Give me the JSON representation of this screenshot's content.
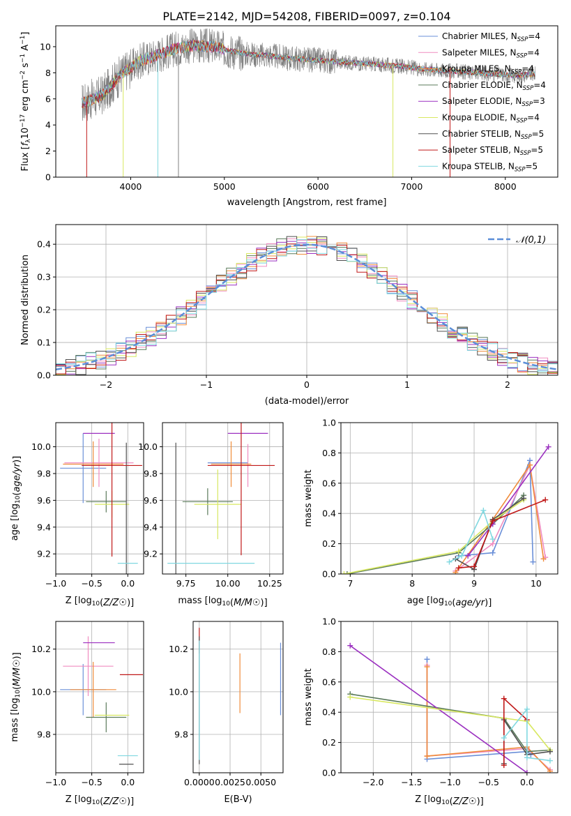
{
  "figure_title": "PLATE=2142, MJD=54208, FIBERID=0097, z=0.104",
  "colors": {
    "Chabrier MILES": "#6a8fd8",
    "Salpeter MILES": "#f08cc0",
    "Kroupa MILES": "#f08c3a",
    "Chabrier ELODIE": "#5a7a5a",
    "Salpeter ELODIE": "#9b30c0",
    "Kroupa ELODIE": "#d8e860",
    "Chabrier STELIB": "#505050",
    "Salpeter STELIB": "#c01818",
    "Kroupa STELIB": "#80d8e0",
    "data": "#808080",
    "gauss": "#5b8ed8"
  },
  "chart_data": [
    {
      "type": "line",
      "title": "PLATE=2142, MJD=54208, FIBERID=0097, z=0.104",
      "xlabel": "wavelength [Angstrom, rest frame]",
      "ylabel": "Flux [f_λ 10^-17 erg cm^-2 s^-1 A^-1]",
      "xlim": [
        3200,
        8560
      ],
      "ylim": [
        0,
        11.6
      ],
      "xticks": [
        4000,
        5000,
        6000,
        7000,
        8000
      ],
      "yticks": [
        0,
        2,
        4,
        6,
        8,
        10
      ],
      "grid": false,
      "legend_position": "top-right",
      "legend": [
        "Chabrier MILES, N_SSP=4",
        "Salpeter MILES, N_SSP=4",
        "Kroupa MILES, N_SSP=4",
        "Chabrier ELODIE, N_SSP=4",
        "Salpeter ELODIE, N_SSP=3",
        "Kroupa ELODIE, N_SSP=4",
        "Chabrier STELIB, N_SSP=5",
        "Salpeter STELIB, N_SSP=5",
        "Kroupa STELIB, N_SSP=5"
      ],
      "model_continuum": {
        "x": [
          3500,
          3700,
          3900,
          4100,
          4300,
          4500,
          4700,
          4900,
          5100,
          5300,
          5500,
          5700,
          5900,
          6100,
          6300,
          6500,
          6700,
          6900,
          7100,
          7300,
          7500,
          7700,
          7900,
          8100,
          8300
        ],
        "y": [
          5.7,
          6.3,
          7.9,
          8.9,
          9.4,
          9.9,
          10.1,
          10.0,
          9.6,
          9.4,
          9.3,
          9.1,
          9.0,
          8.9,
          8.8,
          8.7,
          8.6,
          8.5,
          8.3,
          8.2,
          8.1,
          8.0,
          7.9,
          7.8,
          7.9
        ]
      },
      "spikes": [
        {
          "x": 3530,
          "y0": 0,
          "series": "Salpeter STELIB"
        },
        {
          "x": 3920,
          "y0": 0,
          "series": "Kroupa ELODIE"
        },
        {
          "x": 4290,
          "y0": 0,
          "series": "Kroupa STELIB"
        },
        {
          "x": 4510,
          "y0": 0,
          "series": "data"
        },
        {
          "x": 6800,
          "y0": 0,
          "series": "Kroupa ELODIE"
        },
        {
          "x": 7410,
          "y0": 0,
          "series": "Salpeter STELIB"
        }
      ]
    },
    {
      "type": "histogram",
      "xlabel": "(data-model)/error",
      "ylabel": "Normed distribution",
      "xlim": [
        -2.5,
        2.5
      ],
      "ylim": [
        0,
        0.46
      ],
      "xticks": [
        -2,
        -1,
        0,
        1,
        2
      ],
      "yticks": [
        0.0,
        0.1,
        0.2,
        0.3,
        0.4
      ],
      "grid": true,
      "legend_position": "top-right",
      "legend": [
        "𝒩(0,1)"
      ],
      "bin_width": 0.1,
      "bin_start": -2.5,
      "gaussian": {
        "mu": 0,
        "sigma": 1,
        "style": "dashed"
      }
    },
    {
      "type": "scatter",
      "panel": "age vs Z",
      "xlabel": "Z [log10(Z/Z☉)]",
      "ylabel": "age  [log10(age/yr)]",
      "xlim": [
        -1.0,
        0.22
      ],
      "ylim": [
        9.05,
        10.18
      ],
      "xticks": [
        -1.0,
        -0.5,
        0.0
      ],
      "yticks": [
        9.2,
        9.4,
        9.6,
        9.8,
        10.0
      ],
      "grid": true,
      "errorbars": [
        {
          "series": "Chabrier MILES",
          "x": -0.62,
          "y": 9.84,
          "xerr": 0.32,
          "yerr": 0.26
        },
        {
          "series": "Salpeter MILES",
          "x": -0.4,
          "y": 9.88,
          "xerr": 0.48,
          "yerr": 0.18
        },
        {
          "series": "Kroupa MILES",
          "x": -0.48,
          "y": 9.87,
          "xerr": 0.42,
          "yerr": 0.17
        },
        {
          "series": "Chabrier ELODIE",
          "x": -0.3,
          "y": 9.59,
          "xerr": 0.28,
          "yerr": 0.08
        },
        {
          "series": "Salpeter ELODIE",
          "x": -0.4,
          "y": 10.1,
          "xerr": 0.22,
          "yerr": 0.0
        },
        {
          "series": "Kroupa ELODIE",
          "x": -0.22,
          "y": 9.57,
          "xerr": 0.24,
          "yerr": 0.1
        },
        {
          "series": "Chabrier STELIB",
          "x": -0.02,
          "y": 9.13,
          "xerr": 0.0,
          "yerr": 0.9
        },
        {
          "series": "Salpeter STELIB",
          "x": -0.22,
          "y": 9.86,
          "xerr": 0.42,
          "yerr": 0.68
        },
        {
          "series": "Kroupa STELIB",
          "x": 0.0,
          "y": 9.13,
          "xerr": 0.14,
          "yerr": 0.0
        }
      ]
    },
    {
      "type": "scatter",
      "panel": "age vs mass",
      "xlabel": "mass [log10(M/M☉)]",
      "ylabel": "",
      "xlim": [
        9.61,
        10.33
      ],
      "ylim": [
        9.05,
        10.18
      ],
      "xticks": [
        9.75,
        10.0,
        10.25
      ],
      "yticks": [
        9.2,
        9.4,
        9.6,
        9.8,
        10.0
      ],
      "grid": true,
      "errorbars": [
        {
          "series": "Chabrier MILES",
          "x": 10.0,
          "y": 9.88,
          "xerr": 0.12,
          "yerr": 0.0
        },
        {
          "series": "Salpeter MILES",
          "x": 10.12,
          "y": 9.86,
          "xerr": 0.0,
          "yerr": 0.16
        },
        {
          "series": "Kroupa MILES",
          "x": 10.02,
          "y": 9.87,
          "xerr": 0.12,
          "yerr": 0.17
        },
        {
          "series": "Chabrier ELODIE",
          "x": 9.88,
          "y": 9.59,
          "xerr": 0.15,
          "yerr": 0.1
        },
        {
          "series": "Salpeter ELODIE",
          "x": 10.12,
          "y": 10.1,
          "xerr": 0.12,
          "yerr": 0.0
        },
        {
          "series": "Kroupa ELODIE",
          "x": 9.94,
          "y": 9.57,
          "xerr": 0.14,
          "yerr": 0.26
        },
        {
          "series": "Chabrier STELIB",
          "x": 9.69,
          "y": 9.13,
          "xerr": 0.0,
          "yerr": 0.9
        },
        {
          "series": "Salpeter STELIB",
          "x": 10.08,
          "y": 9.86,
          "xerr": 0.2,
          "yerr": 0.67
        },
        {
          "series": "Kroupa STELIB",
          "x": 9.9,
          "y": 9.13,
          "xerr": 0.26,
          "yerr": 0.0
        }
      ]
    },
    {
      "type": "line",
      "panel": "mass weight vs age",
      "xlabel": "age  [log10(age/yr)]",
      "ylabel": "mass weight",
      "xlim": [
        6.85,
        10.35
      ],
      "ylim": [
        0.0,
        1.0
      ],
      "xticks": [
        7,
        8,
        9,
        10
      ],
      "yticks": [
        0.0,
        0.2,
        0.4,
        0.6,
        0.8,
        1.0
      ],
      "grid": true,
      "series": [
        {
          "name": "Chabrier MILES",
          "points": [
            [
              8.75,
              0.12
            ],
            [
              9.3,
              0.14
            ],
            [
              9.9,
              0.75
            ],
            [
              9.95,
              0.08
            ]
          ]
        },
        {
          "name": "Salpeter MILES",
          "points": [
            [
              8.7,
              0.02
            ],
            [
              9.3,
              0.2
            ],
            [
              9.9,
              0.72
            ],
            [
              10.15,
              0.11
            ]
          ]
        },
        {
          "name": "Kroupa MILES",
          "points": [
            [
              8.7,
              0.01
            ],
            [
              9.3,
              0.36
            ],
            [
              9.9,
              0.72
            ],
            [
              10.12,
              0.1
            ]
          ]
        },
        {
          "name": "Chabrier ELODIE",
          "points": [
            [
              6.95,
              0.0
            ],
            [
              8.75,
              0.14
            ],
            [
              9.3,
              0.33
            ],
            [
              9.8,
              0.52
            ]
          ]
        },
        {
          "name": "Salpeter ELODIE",
          "points": [
            [
              8.9,
              0.12
            ],
            [
              9.3,
              0.33
            ],
            [
              10.2,
              0.84
            ]
          ]
        },
        {
          "name": "Kroupa ELODIE",
          "points": [
            [
              6.9,
              0.0
            ],
            [
              8.75,
              0.15
            ],
            [
              9.3,
              0.35
            ],
            [
              9.8,
              0.49
            ]
          ]
        },
        {
          "name": "Chabrier STELIB",
          "points": [
            [
              8.7,
              0.1
            ],
            [
              9.0,
              0.03
            ],
            [
              9.3,
              0.36
            ],
            [
              9.8,
              0.5
            ]
          ]
        },
        {
          "name": "Salpeter STELIB",
          "points": [
            [
              8.75,
              0.04
            ],
            [
              9.0,
              0.05
            ],
            [
              9.3,
              0.35
            ],
            [
              10.15,
              0.49
            ]
          ]
        },
        {
          "name": "Kroupa STELIB",
          "points": [
            [
              8.6,
              0.08
            ],
            [
              8.8,
              0.12
            ],
            [
              9.15,
              0.42
            ],
            [
              9.3,
              0.23
            ]
          ]
        }
      ]
    },
    {
      "type": "scatter",
      "panel": "mass vs Z",
      "xlabel": "Z [log10(Z/Z☉)]",
      "ylabel": "mass [log10(M/M☉)]",
      "xlim": [
        -1.0,
        0.22
      ],
      "ylim": [
        9.62,
        10.33
      ],
      "xticks": [
        -1.0,
        -0.5,
        0.0
      ],
      "yticks": [
        9.8,
        10.0,
        10.2
      ],
      "grid": true,
      "errorbars": [
        {
          "series": "Chabrier MILES",
          "x": -0.62,
          "y": 10.01,
          "xerr": 0.32,
          "yerr": 0.12
        },
        {
          "series": "Salpeter MILES",
          "x": -0.55,
          "y": 10.12,
          "xerr": 0.35,
          "yerr": 0.14
        },
        {
          "series": "Kroupa MILES",
          "x": -0.48,
          "y": 10.01,
          "xerr": 0.32,
          "yerr": 0.13
        },
        {
          "series": "Chabrier ELODIE",
          "x": -0.3,
          "y": 9.88,
          "xerr": 0.28,
          "yerr": 0.07
        },
        {
          "series": "Salpeter ELODIE",
          "x": -0.4,
          "y": 10.23,
          "xerr": 0.22,
          "yerr": 0.0
        },
        {
          "series": "Kroupa ELODIE",
          "x": -0.22,
          "y": 9.89,
          "xerr": 0.24,
          "yerr": 0.0
        },
        {
          "series": "Chabrier STELIB",
          "x": -0.02,
          "y": 9.66,
          "xerr": 0.1,
          "yerr": 0.0
        },
        {
          "series": "Salpeter STELIB",
          "x": 0.05,
          "y": 10.08,
          "xerr": 0.16,
          "yerr": 0.0
        },
        {
          "series": "Kroupa STELIB",
          "x": 0.0,
          "y": 9.7,
          "xerr": 0.14,
          "yerr": 0.0
        }
      ]
    },
    {
      "type": "scatter",
      "panel": "mass vs E(B-V)",
      "xlabel": "E(B-V)",
      "ylabel": "",
      "xlim": [
        -0.0005,
        0.0068
      ],
      "ylim": [
        9.62,
        10.33
      ],
      "xticks": [
        0.0,
        0.0025,
        0.005
      ],
      "xtick_labels": [
        "0.0000",
        "0.0025",
        "0.0050"
      ],
      "yticks": [
        9.8,
        10.0,
        10.2
      ],
      "grid": true,
      "errorbars": [
        {
          "series": "Chabrier MILES",
          "x": 0.0066,
          "y": 10.06,
          "xerr": 0.0,
          "yerr": 0.17
        },
        {
          "series": "Kroupa MILES",
          "x": 0.0033,
          "y": 10.04,
          "xerr": 0.0,
          "yerr": 0.14
        },
        {
          "series": "Salpeter STELIB",
          "x": 0.0,
          "y": 10.24,
          "xerr": 0.0,
          "yerr": 0.06
        },
        {
          "series": "Chabrier STELIB",
          "x": 0.0,
          "y": 9.96,
          "xerr": 0.0,
          "yerr": 0.3
        },
        {
          "series": "Kroupa STELIB",
          "x": 0.0,
          "y": 9.96,
          "xerr": 0.0,
          "yerr": 0.28
        }
      ]
    },
    {
      "type": "line",
      "panel": "mass weight vs Z",
      "xlabel": "Z [log10(Z/Z☉)]",
      "ylabel": "mass weight",
      "xlim": [
        -2.42,
        0.4
      ],
      "ylim": [
        0.0,
        1.0
      ],
      "xticks": [
        -2.0,
        -1.5,
        -1.0,
        -0.5,
        0.0
      ],
      "yticks": [
        0.0,
        0.2,
        0.4,
        0.6,
        0.8,
        1.0
      ],
      "grid": true,
      "series": [
        {
          "name": "Chabrier MILES",
          "points": [
            [
              -1.3,
              0.75
            ],
            [
              -1.3,
              0.09
            ],
            [
              0.0,
              0.14
            ],
            [
              0.05,
              0.12
            ]
          ]
        },
        {
          "name": "Salpeter MILES",
          "points": [
            [
              -1.3,
              0.71
            ],
            [
              -1.3,
              0.11
            ],
            [
              0.0,
              0.16
            ],
            [
              0.3,
              0.02
            ]
          ]
        },
        {
          "name": "Kroupa MILES",
          "points": [
            [
              -1.3,
              0.7
            ],
            [
              -1.3,
              0.11
            ],
            [
              0.0,
              0.17
            ],
            [
              0.3,
              0.01
            ]
          ]
        },
        {
          "name": "Chabrier ELODIE",
          "points": [
            [
              -2.3,
              0.52
            ],
            [
              -0.3,
              0.36
            ],
            [
              0.0,
              0.14
            ],
            [
              0.3,
              0.15
            ]
          ]
        },
        {
          "name": "Salpeter ELODIE",
          "points": [
            [
              -2.3,
              0.84
            ],
            [
              0.0,
              0.0
            ]
          ]
        },
        {
          "name": "Kroupa ELODIE",
          "points": [
            [
              -2.3,
              0.5
            ],
            [
              0.0,
              0.34
            ],
            [
              0.3,
              0.15
            ]
          ]
        },
        {
          "name": "Chabrier STELIB",
          "points": [
            [
              -0.3,
              0.06
            ],
            [
              -0.3,
              0.35
            ],
            [
              0.0,
              0.12
            ],
            [
              0.3,
              0.14
            ]
          ]
        },
        {
          "name": "Salpeter STELIB",
          "points": [
            [
              -0.3,
              0.05
            ],
            [
              -0.3,
              0.49
            ],
            [
              0.0,
              0.35
            ]
          ]
        },
        {
          "name": "Kroupa STELIB",
          "points": [
            [
              -0.3,
              0.23
            ],
            [
              0.0,
              0.42
            ],
            [
              0.0,
              0.1
            ],
            [
              0.3,
              0.08
            ]
          ]
        }
      ]
    }
  ]
}
